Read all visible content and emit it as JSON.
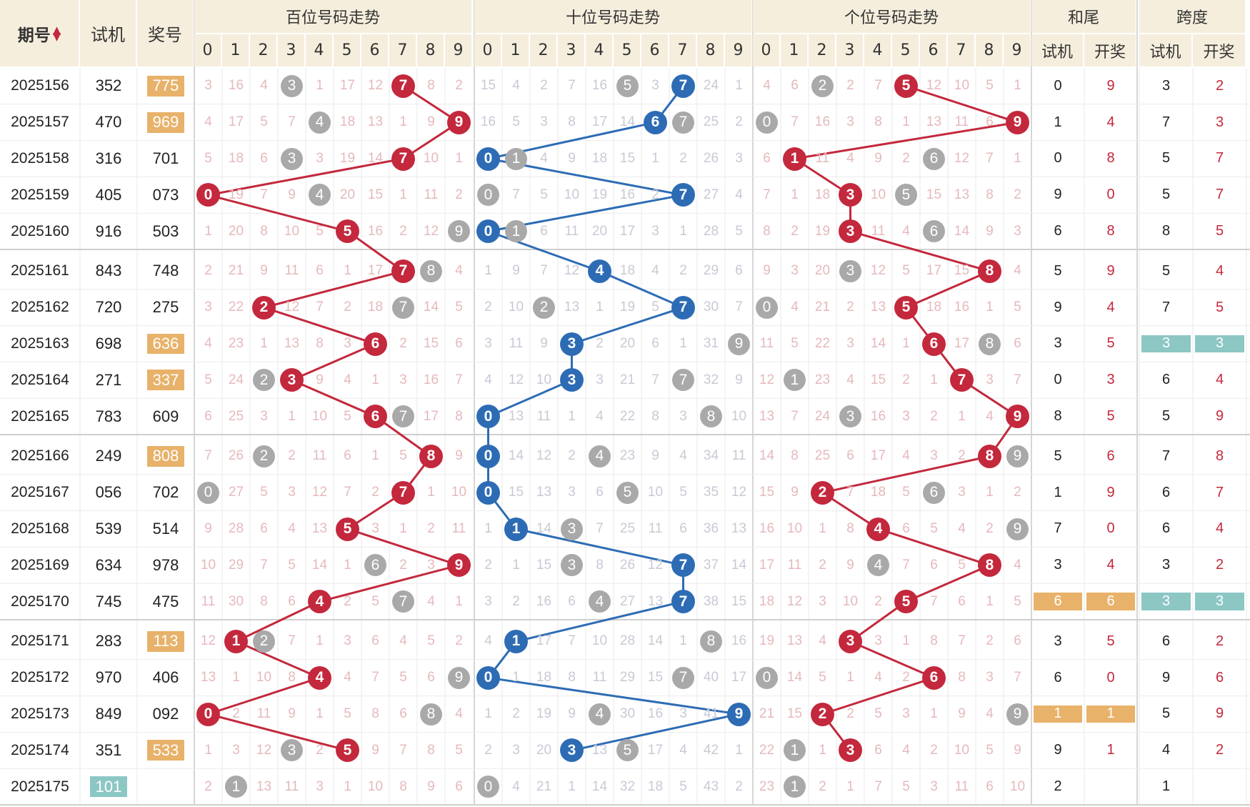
{
  "headers": {
    "period": "期号",
    "sort_icon": "sort-updown-icon",
    "test": "试机",
    "prize": "奖号",
    "hundreds": "百位号码走势",
    "tens": "十位号码走势",
    "units": "个位号码走势",
    "sum_tail": "和尾",
    "span": "跨度",
    "sub_test": "试机",
    "sub_prize": "开奖",
    "digits": [
      "0",
      "1",
      "2",
      "3",
      "4",
      "5",
      "6",
      "7",
      "8",
      "9"
    ]
  },
  "colors": {
    "header_bg": "#f6eedd",
    "red_ball": "#c3283c",
    "blue_ball": "#2d6cb4",
    "grey_ball": "#a9a9a9",
    "orange_highlight": "#e8b26a",
    "teal_highlight": "#8cc7c4"
  },
  "rows": [
    {
      "period": "2025156",
      "test": "352",
      "prize": "775",
      "prize_hl": "orange",
      "h": [
        "3",
        "16",
        "4",
        "3",
        "1",
        "17",
        "12",
        "7",
        "8",
        "2"
      ],
      "t": [
        "15",
        "4",
        "2",
        "7",
        "16",
        "5",
        "3",
        "7",
        "24",
        "1"
      ],
      "u": [
        "4",
        "6",
        "2",
        "2",
        "7",
        "5",
        "12",
        "10",
        "5",
        "1"
      ],
      "st": "0",
      "sp": "9",
      "kt": "3",
      "kp": "2"
    },
    {
      "period": "2025157",
      "test": "470",
      "prize": "969",
      "prize_hl": "orange",
      "h": [
        "4",
        "17",
        "5",
        "7",
        "4",
        "18",
        "13",
        "1",
        "9",
        "9"
      ],
      "t": [
        "16",
        "5",
        "3",
        "8",
        "17",
        "14",
        "6",
        "7",
        "25",
        "2"
      ],
      "u": [
        "0",
        "7",
        "16",
        "3",
        "8",
        "1",
        "13",
        "11",
        "6",
        "9"
      ],
      "st": "1",
      "sp": "4",
      "kt": "7",
      "kp": "3"
    },
    {
      "period": "2025158",
      "test": "316",
      "prize": "701",
      "prize_hl": "",
      "h": [
        "5",
        "18",
        "6",
        "3",
        "3",
        "19",
        "14",
        "7",
        "10",
        "1"
      ],
      "t": [
        "0",
        "1",
        "4",
        "9",
        "18",
        "15",
        "1",
        "2",
        "26",
        "3"
      ],
      "u": [
        "6",
        "1",
        "11",
        "4",
        "9",
        "2",
        "6",
        "12",
        "7",
        "1"
      ],
      "st": "0",
      "sp": "8",
      "kt": "5",
      "kp": "7"
    },
    {
      "period": "2025159",
      "test": "405",
      "prize": "073",
      "prize_hl": "",
      "h": [
        "0",
        "19",
        "7",
        "9",
        "4",
        "20",
        "15",
        "1",
        "11",
        "2"
      ],
      "t": [
        "0",
        "7",
        "5",
        "10",
        "19",
        "16",
        "2",
        "7",
        "27",
        "4"
      ],
      "u": [
        "7",
        "1",
        "18",
        "3",
        "10",
        "5",
        "15",
        "13",
        "8",
        "2"
      ],
      "st": "9",
      "sp": "0",
      "kt": "5",
      "kp": "7"
    },
    {
      "period": "2025160",
      "test": "916",
      "prize": "503",
      "prize_hl": "",
      "h": [
        "1",
        "20",
        "8",
        "10",
        "5",
        "5",
        "16",
        "2",
        "12",
        "9"
      ],
      "t": [
        "0",
        "1",
        "6",
        "11",
        "20",
        "17",
        "3",
        "1",
        "28",
        "5"
      ],
      "u": [
        "8",
        "2",
        "19",
        "3",
        "11",
        "4",
        "6",
        "14",
        "9",
        "3"
      ],
      "st": "6",
      "sp": "8",
      "kt": "8",
      "kp": "5"
    },
    {
      "period": "2025161",
      "test": "843",
      "prize": "748",
      "prize_hl": "",
      "h": [
        "2",
        "21",
        "9",
        "11",
        "6",
        "1",
        "17",
        "7",
        "8",
        "4"
      ],
      "t": [
        "1",
        "9",
        "7",
        "12",
        "4",
        "18",
        "4",
        "2",
        "29",
        "6"
      ],
      "u": [
        "9",
        "3",
        "20",
        "3",
        "12",
        "5",
        "17",
        "15",
        "8",
        "4"
      ],
      "st": "5",
      "sp": "9",
      "kt": "5",
      "kp": "4"
    },
    {
      "period": "2025162",
      "test": "720",
      "prize": "275",
      "prize_hl": "",
      "h": [
        "3",
        "22",
        "2",
        "12",
        "7",
        "2",
        "18",
        "7",
        "14",
        "5"
      ],
      "t": [
        "2",
        "10",
        "2",
        "13",
        "1",
        "19",
        "5",
        "7",
        "30",
        "7"
      ],
      "u": [
        "0",
        "4",
        "21",
        "2",
        "13",
        "5",
        "18",
        "16",
        "1",
        "5"
      ],
      "st": "9",
      "sp": "4",
      "kt": "7",
      "kp": "5"
    },
    {
      "period": "2025163",
      "test": "698",
      "prize": "636",
      "prize_hl": "orange",
      "h": [
        "4",
        "23",
        "1",
        "13",
        "8",
        "3",
        "6",
        "2",
        "15",
        "6"
      ],
      "t": [
        "3",
        "11",
        "9",
        "3",
        "2",
        "20",
        "6",
        "1",
        "31",
        "9"
      ],
      "u": [
        "11",
        "5",
        "22",
        "3",
        "14",
        "1",
        "6",
        "17",
        "8",
        "6"
      ],
      "st": "3",
      "sp": "5",
      "kt": "3",
      "kp": "3",
      "k_hl": "teal"
    },
    {
      "period": "2025164",
      "test": "271",
      "prize": "337",
      "prize_hl": "orange",
      "h": [
        "5",
        "24",
        "2",
        "3",
        "9",
        "4",
        "1",
        "3",
        "16",
        "7"
      ],
      "t": [
        "4",
        "12",
        "10",
        "3",
        "3",
        "21",
        "7",
        "7",
        "32",
        "9"
      ],
      "u": [
        "12",
        "1",
        "23",
        "4",
        "15",
        "2",
        "1",
        "7",
        "3",
        "7"
      ],
      "st": "0",
      "sp": "3",
      "kt": "6",
      "kp": "4"
    },
    {
      "period": "2025165",
      "test": "783",
      "prize": "609",
      "prize_hl": "",
      "h": [
        "6",
        "25",
        "3",
        "1",
        "10",
        "5",
        "6",
        "7",
        "17",
        "8"
      ],
      "t": [
        "0",
        "13",
        "11",
        "1",
        "4",
        "22",
        "8",
        "3",
        "8",
        "10"
      ],
      "u": [
        "13",
        "7",
        "24",
        "3",
        "16",
        "3",
        "2",
        "1",
        "4",
        "9"
      ],
      "st": "8",
      "sp": "5",
      "kt": "5",
      "kp": "9"
    },
    {
      "period": "2025166",
      "test": "249",
      "prize": "808",
      "prize_hl": "orange",
      "h": [
        "7",
        "26",
        "2",
        "2",
        "11",
        "6",
        "1",
        "5",
        "8",
        "9"
      ],
      "t": [
        "0",
        "14",
        "12",
        "2",
        "4",
        "23",
        "9",
        "4",
        "34",
        "11"
      ],
      "u": [
        "14",
        "8",
        "25",
        "6",
        "17",
        "4",
        "3",
        "2",
        "8",
        "9"
      ],
      "st": "5",
      "sp": "6",
      "kt": "7",
      "kp": "8"
    },
    {
      "period": "2025167",
      "test": "056",
      "prize": "702",
      "prize_hl": "",
      "h": [
        "0",
        "27",
        "5",
        "3",
        "12",
        "7",
        "2",
        "7",
        "1",
        "10"
      ],
      "t": [
        "0",
        "15",
        "13",
        "3",
        "6",
        "5",
        "10",
        "5",
        "35",
        "12"
      ],
      "u": [
        "15",
        "9",
        "2",
        "7",
        "18",
        "5",
        "6",
        "3",
        "1",
        "2"
      ],
      "st": "1",
      "sp": "9",
      "kt": "6",
      "kp": "7"
    },
    {
      "period": "2025168",
      "test": "539",
      "prize": "514",
      "prize_hl": "",
      "h": [
        "9",
        "28",
        "6",
        "4",
        "13",
        "5",
        "3",
        "1",
        "2",
        "11"
      ],
      "t": [
        "1",
        "1",
        "14",
        "3",
        "7",
        "25",
        "11",
        "6",
        "36",
        "13"
      ],
      "u": [
        "16",
        "10",
        "1",
        "8",
        "4",
        "6",
        "5",
        "4",
        "2",
        "9"
      ],
      "st": "7",
      "sp": "0",
      "kt": "6",
      "kp": "4"
    },
    {
      "period": "2025169",
      "test": "634",
      "prize": "978",
      "prize_hl": "",
      "h": [
        "10",
        "29",
        "7",
        "5",
        "14",
        "1",
        "6",
        "2",
        "3",
        "9"
      ],
      "t": [
        "2",
        "1",
        "15",
        "3",
        "8",
        "26",
        "12",
        "7",
        "37",
        "14"
      ],
      "u": [
        "17",
        "11",
        "2",
        "9",
        "4",
        "7",
        "6",
        "5",
        "8",
        "4"
      ],
      "st": "3",
      "sp": "4",
      "kt": "3",
      "kp": "2"
    },
    {
      "period": "2025170",
      "test": "745",
      "prize": "475",
      "prize_hl": "",
      "h": [
        "11",
        "30",
        "8",
        "6",
        "4",
        "2",
        "5",
        "7",
        "4",
        "1"
      ],
      "t": [
        "3",
        "2",
        "16",
        "6",
        "4",
        "27",
        "13",
        "7",
        "38",
        "15"
      ],
      "u": [
        "18",
        "12",
        "3",
        "10",
        "2",
        "5",
        "7",
        "6",
        "1",
        "5"
      ],
      "st": "6",
      "sp": "6",
      "kt": "3",
      "kp": "3",
      "s_hl": "orange",
      "k_hl": "teal"
    },
    {
      "period": "2025171",
      "test": "283",
      "prize": "113",
      "prize_hl": "orange",
      "h": [
        "12",
        "1",
        "2",
        "7",
        "1",
        "3",
        "6",
        "4",
        "5",
        "2"
      ],
      "t": [
        "4",
        "1",
        "17",
        "7",
        "10",
        "28",
        "14",
        "1",
        "8",
        "16"
      ],
      "u": [
        "19",
        "13",
        "4",
        "3",
        "3",
        "1",
        "8",
        "7",
        "2",
        "6"
      ],
      "st": "3",
      "sp": "5",
      "kt": "6",
      "kp": "2"
    },
    {
      "period": "2025172",
      "test": "970",
      "prize": "406",
      "prize_hl": "",
      "h": [
        "13",
        "1",
        "10",
        "8",
        "4",
        "4",
        "7",
        "5",
        "6",
        "9"
      ],
      "t": [
        "0",
        "1",
        "18",
        "8",
        "11",
        "29",
        "15",
        "7",
        "40",
        "17"
      ],
      "u": [
        "0",
        "14",
        "5",
        "1",
        "4",
        "2",
        "6",
        "8",
        "3",
        "7"
      ],
      "st": "6",
      "sp": "0",
      "kt": "9",
      "kp": "6"
    },
    {
      "period": "2025173",
      "test": "849",
      "prize": "092",
      "prize_hl": "",
      "h": [
        "0",
        "2",
        "11",
        "9",
        "1",
        "5",
        "8",
        "6",
        "8",
        "4"
      ],
      "t": [
        "1",
        "2",
        "19",
        "9",
        "4",
        "30",
        "16",
        "3",
        "41",
        "9"
      ],
      "u": [
        "21",
        "15",
        "2",
        "2",
        "5",
        "3",
        "1",
        "9",
        "4",
        "9"
      ],
      "st": "1",
      "sp": "1",
      "kt": "5",
      "kp": "9",
      "s_hl": "orange"
    },
    {
      "period": "2025174",
      "test": "351",
      "prize": "533",
      "prize_hl": "orange",
      "h": [
        "1",
        "3",
        "12",
        "3",
        "2",
        "5",
        "9",
        "7",
        "8",
        "5"
      ],
      "t": [
        "2",
        "3",
        "20",
        "3",
        "13",
        "5",
        "17",
        "4",
        "42",
        "1"
      ],
      "u": [
        "22",
        "1",
        "1",
        "3",
        "6",
        "4",
        "2",
        "10",
        "5",
        "9"
      ],
      "st": "9",
      "sp": "1",
      "kt": "4",
      "kp": "2"
    },
    {
      "period": "2025175",
      "test": "101",
      "prize": "",
      "prize_hl": "",
      "test_hl": "teal",
      "h": [
        "2",
        "1",
        "13",
        "11",
        "3",
        "1",
        "10",
        "8",
        "9",
        "6"
      ],
      "t": [
        "0",
        "4",
        "21",
        "1",
        "14",
        "32",
        "18",
        "5",
        "43",
        "2"
      ],
      "u": [
        "23",
        "1",
        "2",
        "1",
        "7",
        "5",
        "3",
        "11",
        "6",
        "10"
      ],
      "st": "2",
      "sp": "",
      "kt": "1",
      "kp": ""
    }
  ]
}
